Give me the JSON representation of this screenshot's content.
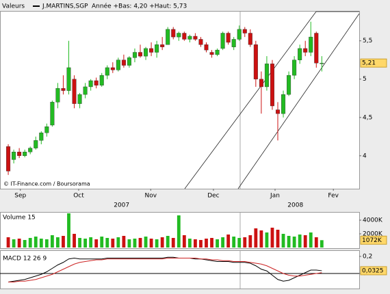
{
  "header": {
    "panel": "Valeurs",
    "symbol": "J.MARTINS,SGP",
    "range": "Année +Bas: 4,20 +Haut: 5,73"
  },
  "chart_data": [
    {
      "type": "candlestick",
      "credit": "© IT-Finance.com / Boursorama",
      "xlim": [
        -1.5,
        63.8
      ],
      "xticks": [
        {
          "value": 2.2,
          "label": "Sep"
        },
        {
          "value": 12.8,
          "label": "Oct"
        },
        {
          "value": 25.9,
          "label": "Nov"
        },
        {
          "value": 37.3,
          "label": "Dec"
        },
        {
          "value": 48.5,
          "label": "Jan"
        },
        {
          "value": 59.1,
          "label": "Fev"
        }
      ],
      "xticks2": [
        {
          "value": 20.6,
          "label": "2007"
        },
        {
          "value": 52.2,
          "label": "2008"
        }
      ],
      "ylim": [
        3.57,
        5.89
      ],
      "yticks": [
        {
          "value": 4,
          "label": "4"
        },
        {
          "value": 4.5,
          "label": "4,5"
        },
        {
          "value": 5,
          "label": "5"
        },
        {
          "value": 5.5,
          "label": "5,5"
        }
      ],
      "up_color": "#22bb22",
      "down_color": "#cc1111",
      "open": [
        4.12,
        3.95,
        4.05,
        4.0,
        4.05,
        4.1,
        4.2,
        4.3,
        4.4,
        4.7,
        4.88,
        4.85,
        5.0,
        4.68,
        4.8,
        4.9,
        4.98,
        4.92,
        5.05,
        5.15,
        5.12,
        5.25,
        5.18,
        5.28,
        5.35,
        5.3,
        5.4,
        5.35,
        5.45,
        5.45,
        5.65,
        5.55,
        5.6,
        5.52,
        5.56,
        5.52,
        5.45,
        5.35,
        5.32,
        5.4,
        5.6,
        5.42,
        5.52,
        5.65,
        5.6,
        5.45,
        5.0,
        4.9,
        5.2,
        4.6,
        4.55,
        4.8,
        5.05,
        5.25,
        5.4,
        5.35,
        5.6,
        5.21
      ],
      "high": [
        4.15,
        4.08,
        4.1,
        4.08,
        4.12,
        4.25,
        4.32,
        4.42,
        4.72,
        4.95,
        5.05,
        5.5,
        5.05,
        4.82,
        4.95,
        5.0,
        5.02,
        5.08,
        5.18,
        5.22,
        5.28,
        5.32,
        5.3,
        5.4,
        5.45,
        5.42,
        5.48,
        5.5,
        5.55,
        5.68,
        5.68,
        5.62,
        5.62,
        5.58,
        5.6,
        5.55,
        5.48,
        5.38,
        5.4,
        5.62,
        5.62,
        5.55,
        5.7,
        5.68,
        5.65,
        5.5,
        5.1,
        5.3,
        5.25,
        4.7,
        4.85,
        5.1,
        5.3,
        5.45,
        5.5,
        5.75,
        5.62,
        5.3
      ],
      "low": [
        3.75,
        3.9,
        3.97,
        3.98,
        4.02,
        4.08,
        4.15,
        4.25,
        4.38,
        4.62,
        4.8,
        4.8,
        4.62,
        4.62,
        4.75,
        4.85,
        4.88,
        4.9,
        5.0,
        5.08,
        5.1,
        5.15,
        5.15,
        5.22,
        5.28,
        5.25,
        5.3,
        5.28,
        5.38,
        5.45,
        5.52,
        5.5,
        5.5,
        5.48,
        5.5,
        5.42,
        5.35,
        5.28,
        5.3,
        5.38,
        5.45,
        5.38,
        5.5,
        5.55,
        5.42,
        4.9,
        4.55,
        4.85,
        4.6,
        4.2,
        4.5,
        4.78,
        5.0,
        5.2,
        5.3,
        5.3,
        5.15,
        5.1
      ],
      "close": [
        3.8,
        4.05,
        4.0,
        4.05,
        4.1,
        4.2,
        4.3,
        4.38,
        4.7,
        4.88,
        4.85,
        5.15,
        4.68,
        4.8,
        4.9,
        4.98,
        4.92,
        5.05,
        5.15,
        5.12,
        5.25,
        5.18,
        5.28,
        5.35,
        5.3,
        5.4,
        5.35,
        5.45,
        5.42,
        5.65,
        5.55,
        5.6,
        5.52,
        5.56,
        5.52,
        5.45,
        5.38,
        5.32,
        5.38,
        5.6,
        5.48,
        5.52,
        5.65,
        5.6,
        5.45,
        5.0,
        4.9,
        5.2,
        4.65,
        4.55,
        4.8,
        5.05,
        5.25,
        5.4,
        5.35,
        5.55,
        5.21,
        5.21
      ],
      "last_label": "5,21"
    },
    {
      "type": "bar",
      "title": "Volume 15",
      "xlim": [
        -1.5,
        63.8
      ],
      "ylim": [
        0,
        5000
      ],
      "yticks": [
        {
          "value": 2000,
          "label": "2000K"
        },
        {
          "value": 4000,
          "label": "4000K"
        }
      ],
      "values": [
        1500,
        1200,
        1300,
        1100,
        1400,
        1600,
        1300,
        1200,
        1800,
        1500,
        1700,
        5000,
        2000,
        1400,
        1300,
        1500,
        1200,
        1600,
        1400,
        1300,
        1500,
        1700,
        1200,
        1300,
        1400,
        1600,
        1300,
        1200,
        1500,
        1700,
        1400,
        4700,
        1800,
        1300,
        1200,
        1100,
        1300,
        1400,
        1200,
        1500,
        1900,
        1600,
        1400,
        1500,
        1800,
        2800,
        2500,
        2200,
        2900,
        2600,
        2000,
        1700,
        1600,
        1900,
        1800,
        2200,
        1500,
        1072
      ],
      "last_label": "1072K"
    },
    {
      "type": "line",
      "title": "MACD 12 26 9",
      "xlim": [
        -1.5,
        63.8
      ],
      "ylim": [
        -0.176,
        0.264
      ],
      "yticks": [
        {
          "value": 0.2,
          "label": "0,2"
        },
        {
          "value": 0,
          "label": "0"
        }
      ],
      "series": [
        {
          "color": "#000000",
          "values": [
            -0.1,
            -0.09,
            -0.08,
            -0.07,
            -0.05,
            -0.03,
            -0.01,
            0.02,
            0.06,
            0.1,
            0.13,
            0.17,
            0.18,
            0.17,
            0.17,
            0.17,
            0.17,
            0.17,
            0.18,
            0.18,
            0.18,
            0.18,
            0.18,
            0.18,
            0.18,
            0.18,
            0.18,
            0.18,
            0.18,
            0.19,
            0.19,
            0.18,
            0.18,
            0.18,
            0.17,
            0.17,
            0.16,
            0.15,
            0.14,
            0.14,
            0.14,
            0.13,
            0.13,
            0.13,
            0.12,
            0.09,
            0.05,
            0.03,
            -0.02,
            -0.07,
            -0.09,
            -0.08,
            -0.05,
            -0.02,
            0.01,
            0.04,
            0.04,
            0.0325
          ]
        },
        {
          "color": "#cc2222",
          "values": [
            -0.1,
            -0.1,
            -0.09,
            -0.09,
            -0.08,
            -0.07,
            -0.05,
            -0.03,
            -0.01,
            0.02,
            0.05,
            0.08,
            0.11,
            0.13,
            0.14,
            0.15,
            0.16,
            0.16,
            0.17,
            0.17,
            0.17,
            0.17,
            0.17,
            0.17,
            0.17,
            0.17,
            0.17,
            0.17,
            0.17,
            0.18,
            0.18,
            0.18,
            0.18,
            0.18,
            0.18,
            0.17,
            0.17,
            0.16,
            0.16,
            0.15,
            0.15,
            0.14,
            0.14,
            0.14,
            0.13,
            0.12,
            0.11,
            0.09,
            0.06,
            0.03,
            0.0,
            -0.02,
            -0.03,
            -0.03,
            -0.02,
            -0.01,
            0.0,
            0.01
          ]
        }
      ],
      "last_label": "0,0325"
    }
  ]
}
